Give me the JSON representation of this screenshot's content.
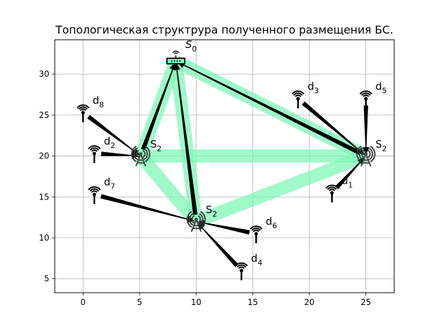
{
  "chart_data": {
    "type": "network",
    "title": "Топологическая структрура полученного размещения БС.",
    "xlabel": "",
    "ylabel": "",
    "xlim": [
      -2.5,
      27.5
    ],
    "ylim": [
      3.3,
      34.2
    ],
    "xticks": [
      "0",
      "5",
      "10",
      "15",
      "20",
      "25"
    ],
    "yticks": [
      "5",
      "10",
      "15",
      "20",
      "25",
      "30"
    ],
    "grid": true,
    "colors": {
      "link": "#7ff7b7",
      "arrow": "#000000",
      "icon": "#333333",
      "grid": "#b0b0b0"
    },
    "base_stations": [
      {
        "id": "s0",
        "label_main": "S",
        "label_sub": "0",
        "x": 8.2,
        "y": 31.6,
        "kind": "router"
      },
      {
        "id": "s2a",
        "label_main": "S",
        "label_sub": "2",
        "x": 5.1,
        "y": 20.0,
        "kind": "tower"
      },
      {
        "id": "s2b",
        "label_main": "S",
        "label_sub": "2",
        "x": 10.0,
        "y": 12.0,
        "kind": "tower"
      },
      {
        "id": "s2c",
        "label_main": "S",
        "label_sub": "2",
        "x": 25.0,
        "y": 20.0,
        "kind": "tower"
      }
    ],
    "devices": [
      {
        "id": "d1",
        "label_main": "d",
        "label_sub": "1",
        "x": 22.0,
        "y": 15.5
      },
      {
        "id": "d2",
        "label_main": "d",
        "label_sub": "2",
        "x": 1.0,
        "y": 20.3
      },
      {
        "id": "d3",
        "label_main": "d",
        "label_sub": "3",
        "x": 19.0,
        "y": 27.0
      },
      {
        "id": "d4",
        "label_main": "d",
        "label_sub": "4",
        "x": 14.0,
        "y": 6.0
      },
      {
        "id": "d5",
        "label_main": "d",
        "label_sub": "5",
        "x": 25.0,
        "y": 27.0
      },
      {
        "id": "d6",
        "label_main": "d",
        "label_sub": "6",
        "x": 15.3,
        "y": 10.5
      },
      {
        "id": "d7",
        "label_main": "d",
        "label_sub": "7",
        "x": 1.0,
        "y": 15.3
      },
      {
        "id": "d8",
        "label_main": "d",
        "label_sub": "8",
        "x": 0.0,
        "y": 25.3
      }
    ],
    "links": [
      {
        "from": "s0",
        "to": "s2a"
      },
      {
        "from": "s0",
        "to": "s2b"
      },
      {
        "from": "s0",
        "to": "s2c"
      },
      {
        "from": "s2a",
        "to": "s2b"
      },
      {
        "from": "s2a",
        "to": "s2c"
      },
      {
        "from": "s2b",
        "to": "s2c"
      }
    ],
    "arrows": [
      {
        "from": "s2a",
        "to": "s0"
      },
      {
        "from": "s2b",
        "to": "s0"
      },
      {
        "from": "s2c",
        "to": "s0"
      },
      {
        "from": "d1",
        "to": "s2c"
      },
      {
        "from": "d3",
        "to": "s2c"
      },
      {
        "from": "d5",
        "to": "s2c"
      },
      {
        "from": "d2",
        "to": "s2a"
      },
      {
        "from": "d8",
        "to": "s2a"
      },
      {
        "from": "d7",
        "to": "s2b"
      },
      {
        "from": "d6",
        "to": "s2b"
      },
      {
        "from": "d4",
        "to": "s2b"
      }
    ]
  }
}
